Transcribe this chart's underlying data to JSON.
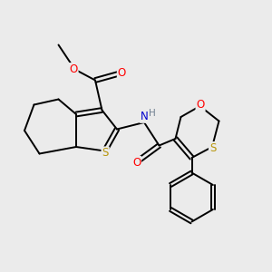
{
  "bg_color": "#ebebeb",
  "atom_colors": {
    "C": "#000000",
    "S": "#b8960c",
    "O": "#ff0000",
    "N": "#0000cd",
    "H": "#708090"
  },
  "bond_color": "#000000",
  "bond_width": 1.4,
  "font_size_atom": 8.5
}
